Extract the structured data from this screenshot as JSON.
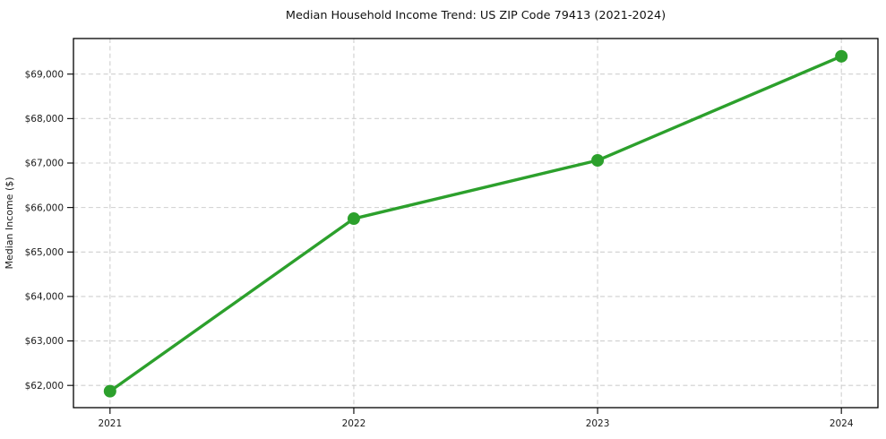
{
  "chart_data": {
    "type": "line",
    "title": "Median Household Income Trend: US ZIP Code 79413 (2021-2024)",
    "xlabel": "",
    "ylabel": "Median Income ($)",
    "x": [
      2021,
      2022,
      2023,
      2024
    ],
    "xtick_labels": [
      "2021",
      "2022",
      "2023",
      "2024"
    ],
    "series": [
      {
        "name": "Median household income",
        "values": [
          61870,
          65750,
          67060,
          69400
        ]
      }
    ],
    "ytick_values": [
      62000,
      63000,
      64000,
      65000,
      66000,
      67000,
      68000,
      69000
    ],
    "ytick_labels": [
      "$62,000",
      "$63,000",
      "$64,000",
      "$65,000",
      "$66,000",
      "$67,000",
      "$68,000",
      "$69,000"
    ],
    "xlim": [
      2020.85,
      2024.15
    ],
    "ylim": [
      61500,
      69800
    ],
    "grid": true,
    "grid_style": "dashed",
    "legend_position": "none",
    "marker": "circle",
    "colors": {
      "line": "#2ca02c",
      "marker": "#2ca02c",
      "grid": "#cfcfcf",
      "axis": "#000000",
      "text": "#1a1a1a",
      "background": "#ffffff"
    }
  }
}
